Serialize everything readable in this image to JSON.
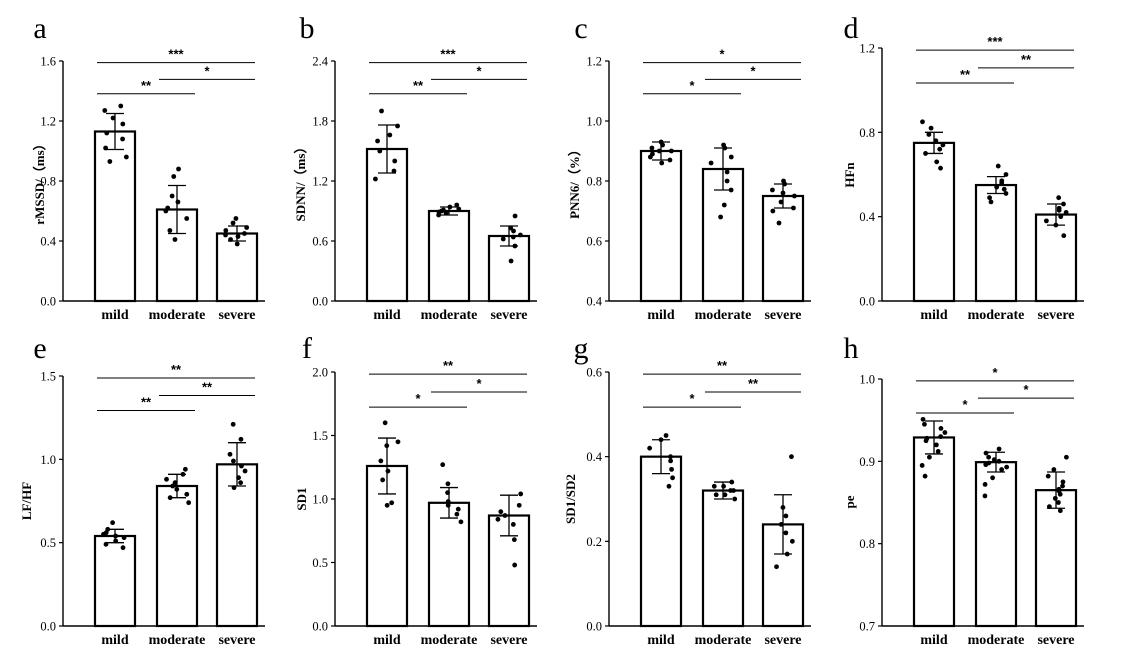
{
  "chart_data": [
    {
      "panel": "a",
      "type": "bar",
      "ylabel": "rMSSD/（ms）",
      "categories": [
        "mild",
        "moderate",
        "severe"
      ],
      "values": [
        1.13,
        0.61,
        0.45
      ],
      "errors": [
        0.12,
        0.16,
        0.05
      ],
      "ylim": [
        0.0,
        1.6
      ],
      "yticks": [
        "0.0",
        "0.4",
        "0.8",
        "1.2",
        "1.6"
      ],
      "points": [
        [
          1.3,
          1.27,
          1.22,
          1.18,
          1.12,
          1.08,
          1.02,
          0.96,
          0.93
        ],
        [
          0.88,
          0.83,
          0.7,
          0.66,
          0.62,
          0.6,
          0.55,
          0.47,
          0.41
        ],
        [
          0.55,
          0.52,
          0.49,
          0.47,
          0.45,
          0.44,
          0.43,
          0.41,
          0.38
        ]
      ],
      "significance": [
        {
          "from": 0,
          "to": 1,
          "label": "**"
        },
        {
          "from": 1,
          "to": 2,
          "label": "*"
        },
        {
          "from": 0,
          "to": 2,
          "label": "***"
        }
      ]
    },
    {
      "panel": "b",
      "type": "bar",
      "ylabel": "SDNN/（ms）",
      "categories": [
        "mild",
        "moderate",
        "severe"
      ],
      "values": [
        1.52,
        0.9,
        0.65
      ],
      "errors": [
        0.24,
        0.04,
        0.1
      ],
      "ylim": [
        0.0,
        2.4
      ],
      "yticks": [
        "0.0",
        "0.6",
        "1.2",
        "1.8",
        "2.4"
      ],
      "points": [
        [
          1.9,
          1.75,
          1.66,
          1.6,
          1.5,
          1.4,
          1.3,
          1.22
        ],
        [
          0.96,
          0.94,
          0.92,
          0.91,
          0.9,
          0.89,
          0.88,
          0.86
        ],
        [
          0.85,
          0.73,
          0.7,
          0.66,
          0.64,
          0.62,
          0.55,
          0.4
        ]
      ],
      "significance": [
        {
          "from": 0,
          "to": 1,
          "label": "**"
        },
        {
          "from": 1,
          "to": 2,
          "label": "*"
        },
        {
          "from": 0,
          "to": 2,
          "label": "***"
        }
      ]
    },
    {
      "panel": "c",
      "type": "bar",
      "ylabel": "PNN6/（%）",
      "categories": [
        "mild",
        "moderate",
        "severe"
      ],
      "values": [
        0.9,
        0.84,
        0.75
      ],
      "errors": [
        0.03,
        0.07,
        0.04
      ],
      "ylim": [
        0.4,
        1.2
      ],
      "yticks": [
        "0.4",
        "0.6",
        "0.8",
        "1.0",
        "1.2"
      ],
      "points": [
        [
          0.93,
          0.92,
          0.91,
          0.9,
          0.9,
          0.89,
          0.88,
          0.87,
          0.86
        ],
        [
          0.92,
          0.91,
          0.88,
          0.86,
          0.83,
          0.8,
          0.77,
          0.72,
          0.68
        ],
        [
          0.8,
          0.79,
          0.77,
          0.76,
          0.75,
          0.73,
          0.71,
          0.7,
          0.66
        ]
      ],
      "significance": [
        {
          "from": 0,
          "to": 1,
          "label": "*"
        },
        {
          "from": 1,
          "to": 2,
          "label": "*"
        },
        {
          "from": 0,
          "to": 2,
          "label": "*"
        }
      ]
    },
    {
      "panel": "d",
      "type": "bar",
      "ylabel": "HFn",
      "categories": [
        "mild",
        "moderate",
        "severe"
      ],
      "values": [
        0.75,
        0.55,
        0.41
      ],
      "errors": [
        0.05,
        0.04,
        0.05
      ],
      "ylim": [
        0.0,
        1.2
      ],
      "yticks": [
        "0.0",
        "0.4",
        "0.8",
        "1.2"
      ],
      "points": [
        [
          0.85,
          0.82,
          0.79,
          0.76,
          0.74,
          0.72,
          0.7,
          0.66,
          0.63
        ],
        [
          0.64,
          0.6,
          0.57,
          0.56,
          0.54,
          0.53,
          0.51,
          0.49,
          0.47
        ],
        [
          0.49,
          0.46,
          0.44,
          0.43,
          0.42,
          0.4,
          0.38,
          0.36,
          0.31
        ]
      ],
      "significance": [
        {
          "from": 0,
          "to": 1,
          "label": "**"
        },
        {
          "from": 1,
          "to": 2,
          "label": "**"
        },
        {
          "from": 0,
          "to": 2,
          "label": "***"
        }
      ]
    },
    {
      "panel": "e",
      "type": "bar",
      "ylabel": "LF/HF",
      "categories": [
        "mild",
        "moderate",
        "severe"
      ],
      "values": [
        0.54,
        0.84,
        0.97
      ],
      "errors": [
        0.04,
        0.07,
        0.13
      ],
      "ylim": [
        0.0,
        1.5
      ],
      "yticks": [
        "0.0",
        "0.5",
        "1.0",
        "1.5"
      ],
      "points": [
        [
          0.62,
          0.58,
          0.56,
          0.55,
          0.54,
          0.53,
          0.51,
          0.49,
          0.47
        ],
        [
          0.94,
          0.91,
          0.88,
          0.86,
          0.84,
          0.82,
          0.79,
          0.77,
          0.74
        ],
        [
          1.21,
          1.12,
          1.03,
          0.99,
          0.96,
          0.93,
          0.89,
          0.86,
          0.83
        ]
      ],
      "significance": [
        {
          "from": 0,
          "to": 1,
          "label": "**"
        },
        {
          "from": 1,
          "to": 2,
          "label": "**"
        },
        {
          "from": 0,
          "to": 2,
          "label": "**"
        }
      ]
    },
    {
      "panel": "f",
      "type": "bar",
      "ylabel": "SD1",
      "categories": [
        "mild",
        "moderate",
        "severe"
      ],
      "values": [
        1.26,
        0.97,
        0.87
      ],
      "errors": [
        0.22,
        0.12,
        0.16
      ],
      "ylim": [
        0.0,
        2.0
      ],
      "yticks": [
        "0.0",
        "0.5",
        "1.0",
        "1.5",
        "2.0"
      ],
      "points": [
        [
          1.6,
          1.45,
          1.42,
          1.3,
          1.22,
          1.15,
          0.97,
          0.95
        ],
        [
          1.27,
          1.12,
          1.05,
          0.98,
          0.95,
          0.92,
          0.88,
          0.82
        ],
        [
          1.04,
          0.95,
          0.9,
          0.87,
          0.84,
          0.8,
          0.68,
          0.48
        ]
      ],
      "significance": [
        {
          "from": 0,
          "to": 1,
          "label": "*"
        },
        {
          "from": 1,
          "to": 2,
          "label": "*"
        },
        {
          "from": 0,
          "to": 2,
          "label": "**"
        }
      ]
    },
    {
      "panel": "g",
      "type": "bar",
      "ylabel": "SD1/SD2",
      "categories": [
        "mild",
        "moderate",
        "severe"
      ],
      "values": [
        0.4,
        0.32,
        0.24
      ],
      "errors": [
        0.04,
        0.02,
        0.07
      ],
      "ylim": [
        0.0,
        0.6
      ],
      "yticks": [
        "0.0",
        "0.2",
        "0.4",
        "0.6"
      ],
      "points": [
        [
          0.45,
          0.44,
          0.42,
          0.4,
          0.39,
          0.37,
          0.35,
          0.33
        ],
        [
          0.34,
          0.33,
          0.33,
          0.32,
          0.32,
          0.31,
          0.31,
          0.3
        ],
        [
          0.4,
          0.28,
          0.26,
          0.24,
          0.22,
          0.2,
          0.17,
          0.14
        ]
      ],
      "significance": [
        {
          "from": 0,
          "to": 1,
          "label": "*"
        },
        {
          "from": 1,
          "to": 2,
          "label": "**"
        },
        {
          "from": 0,
          "to": 2,
          "label": "**"
        }
      ]
    },
    {
      "panel": "h",
      "type": "bar",
      "ylabel": "pe",
      "categories": [
        "mild",
        "moderate",
        "severe"
      ],
      "values": [
        0.929,
        0.899,
        0.865
      ],
      "errors": [
        0.02,
        0.012,
        0.022
      ],
      "ylim": [
        0.7,
        1.0
      ],
      "yticks": [
        "0.7",
        "0.8",
        "0.9",
        "1.0"
      ],
      "points": [
        [
          0.951,
          0.945,
          0.94,
          0.935,
          0.93,
          0.928,
          0.925,
          0.92,
          0.912,
          0.905,
          0.895,
          0.882
        ],
        [
          0.915,
          0.91,
          0.905,
          0.902,
          0.9,
          0.898,
          0.896,
          0.893,
          0.89,
          0.88,
          0.872,
          0.858
        ],
        [
          0.905,
          0.89,
          0.882,
          0.875,
          0.87,
          0.866,
          0.864,
          0.86,
          0.855,
          0.85,
          0.845,
          0.84
        ]
      ],
      "significance": [
        {
          "from": 0,
          "to": 1,
          "label": "*"
        },
        {
          "from": 1,
          "to": 2,
          "label": "*"
        },
        {
          "from": 0,
          "to": 2,
          "label": "*"
        }
      ]
    }
  ]
}
